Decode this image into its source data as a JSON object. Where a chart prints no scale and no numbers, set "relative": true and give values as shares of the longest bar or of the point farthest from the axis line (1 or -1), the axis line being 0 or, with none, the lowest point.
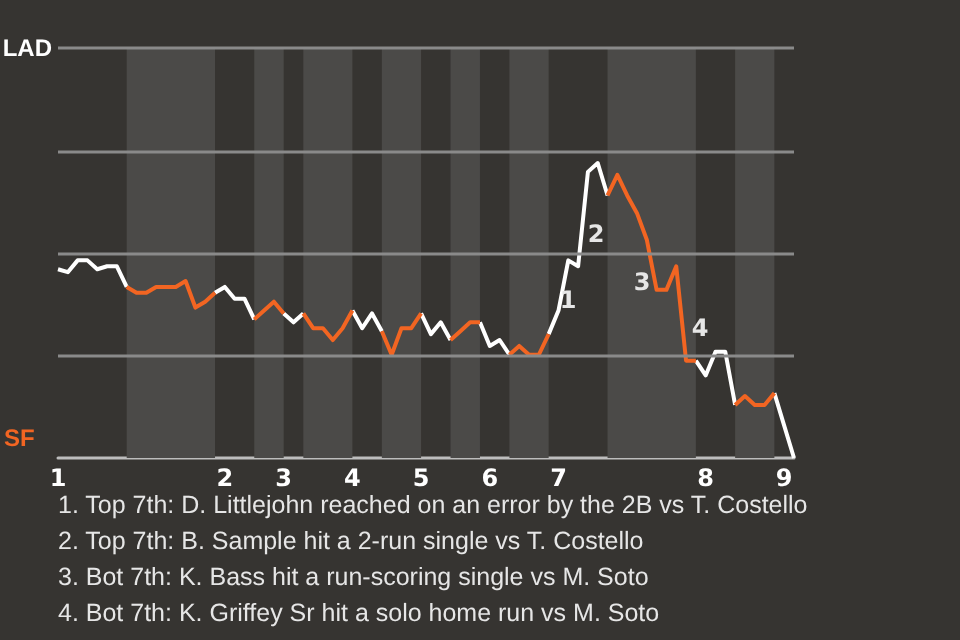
{
  "chart_data": {
    "type": "line",
    "relative": true,
    "categories": [
      "1",
      null,
      null,
      null,
      null,
      null,
      null,
      null,
      null,
      null,
      null,
      null,
      null,
      null,
      null,
      null,
      null,
      "2",
      null,
      null,
      null,
      null,
      null,
      "3",
      null,
      null,
      null,
      null,
      null,
      null,
      "4",
      null,
      null,
      null,
      null,
      null,
      null,
      "5",
      null,
      null,
      null,
      null,
      null,
      null,
      "6",
      null,
      null,
      null,
      null,
      null,
      null,
      "7",
      null,
      null,
      null,
      null,
      null,
      null,
      null,
      null,
      null,
      null,
      null,
      null,
      null,
      null,
      "8",
      null,
      null,
      null,
      null,
      null,
      null,
      null,
      "9",
      null
    ],
    "series": [
      {
        "color": "#ffffff",
        "values": [
          0.64,
          0.63,
          0.67,
          0.67,
          0.64,
          0.65,
          0.65,
          0.58,
          null,
          null,
          null,
          null,
          null,
          null,
          null,
          null,
          0.56,
          0.58,
          0.54,
          0.54,
          0.47,
          null,
          null,
          0.49,
          0.46,
          0.49,
          null,
          null,
          null,
          null,
          0.5,
          0.44,
          0.49,
          0.43,
          null,
          null,
          null,
          0.49,
          0.42,
          0.46,
          0.4,
          null,
          null,
          0.46,
          0.38,
          0.4,
          0.35,
          null,
          null,
          null,
          0.42,
          0.5,
          0.67,
          0.65,
          0.97,
          1,
          0.89,
          null,
          null,
          null,
          null,
          null,
          null,
          null,
          null,
          0.33,
          0.28,
          0.36,
          0.36,
          0.18,
          null,
          null,
          null,
          0.22,
          0.11,
          0
        ]
      },
      {
        "color": "#f26522",
        "values": [
          null,
          null,
          null,
          null,
          null,
          null,
          null,
          0.58,
          0.56,
          0.56,
          0.58,
          0.58,
          0.58,
          0.6,
          0.51,
          0.53,
          0.56,
          null,
          null,
          null,
          0.47,
          0.5,
          0.53,
          0.49,
          null,
          0.49,
          0.44,
          0.44,
          0.4,
          0.44,
          0.5,
          null,
          null,
          0.43,
          0.35,
          0.44,
          0.44,
          0.49,
          null,
          null,
          0.4,
          0.43,
          0.46,
          0.46,
          null,
          null,
          0.35,
          0.38,
          0.35,
          0.35,
          0.42,
          null,
          null,
          null,
          null,
          null,
          0.89,
          0.96,
          0.89,
          0.83,
          0.74,
          0.57,
          0.57,
          0.65,
          0.33,
          0.33,
          null,
          null,
          null,
          0.18,
          0.21,
          0.18,
          0.18,
          0.22,
          null,
          null
        ]
      }
    ],
    "ref_lines": [
      {
        "axis": "y",
        "value": 0.35,
        "label": null,
        "color": "#8a8a8a"
      },
      {
        "axis": "y",
        "value": 0.69,
        "label": null,
        "color": "#8a8a8a"
      },
      {
        "axis": "y",
        "value": 1.04,
        "label": null,
        "color": "#8a8a8a"
      },
      {
        "axis": "y",
        "value": 1.39,
        "label": "LAD",
        "color": "#8a8a8a"
      }
    ],
    "ylabel": "SF",
    "annotations": [
      "1",
      "2",
      "3",
      "4",
      "1. Top 7th: D. Littlejohn reached on an error by the 2B vs T. Costello",
      "2. Top 7th: B. Sample hit a 2-run single vs T. Costello",
      "3. Bot 7th: K. Bass hit a run-scoring single vs M. Soto",
      "4. Bot 7th: K. Griffey Sr hit a solo home run vs M. Soto"
    ]
  }
}
